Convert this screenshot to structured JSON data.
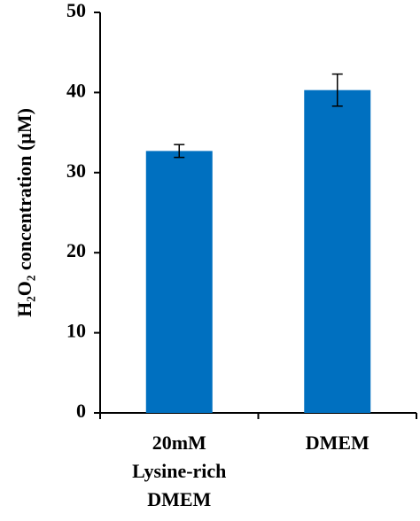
{
  "chart_data": {
    "type": "bar",
    "y_label": "H₂O₂ concentration (μM)",
    "categories": [
      [
        "20mM",
        "Lysine-rich",
        "DMEM"
      ],
      [
        "DMEM"
      ]
    ],
    "series": [
      {
        "color": "#0070c0",
        "values": [
          32.7,
          40.3
        ],
        "errors": [
          0.8,
          2.0
        ]
      }
    ],
    "ylim": [
      0,
      50
    ],
    "yticks": [
      0,
      10,
      20,
      30,
      40,
      50
    ],
    "grid": false
  }
}
